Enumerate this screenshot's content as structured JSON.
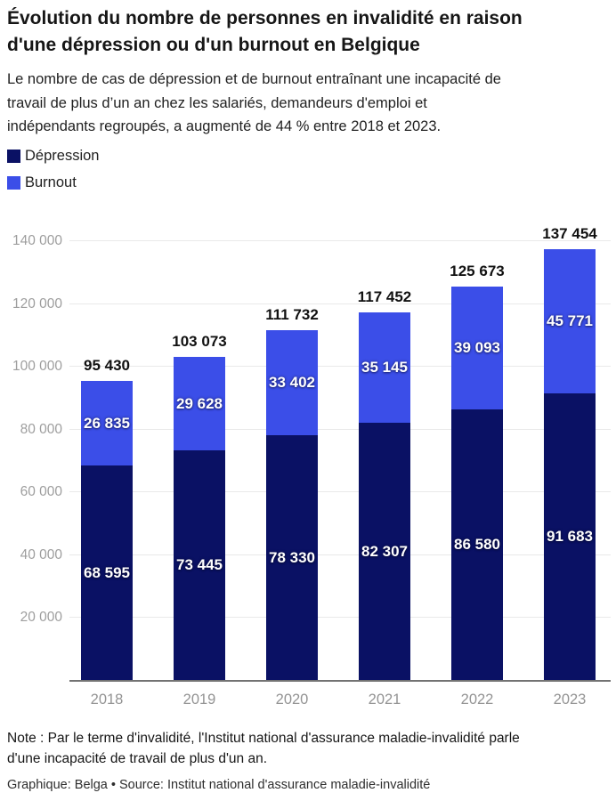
{
  "title": "Évolution du nombre de personnes en invalidité en raison\nd'une dépression ou d'un burnout en Belgique",
  "subtitle": "Le nombre de cas de dépression et de burnout entraînant une incapacité de\ntravail de plus d’un an chez les salariés, demandeurs d'emploi et\nindépendants regroupés, a augmenté de 44 % entre 2018 et 2023.",
  "legend": [
    {
      "label": "Dépression",
      "color": "#0a1164"
    },
    {
      "label": "Burnout",
      "color": "#3b4ee8"
    }
  ],
  "note": "Note : Par le terme d'invalidité, l'Institut national d'assurance maladie-invalidité parle\nd'une incapacité de travail de plus d'un an.",
  "credit": "Graphique: Belga • Source: Institut national d'assurance maladie-invalidité",
  "colors": {
    "depression": "#0a1164",
    "burnout": "#3b4ee8",
    "gridline": "#e9e9e9",
    "baseline": "#737373",
    "axis_text": "#9e9e9e",
    "total_text": "#111111",
    "inside_text": "#ffffff"
  },
  "chart_data": {
    "type": "bar",
    "stacked": true,
    "title": "Évolution du nombre de personnes en invalidité en raison d'une dépression ou d'un burnout en Belgique",
    "categories": [
      "2018",
      "2019",
      "2020",
      "2021",
      "2022",
      "2023"
    ],
    "series": [
      {
        "name": "Dépression",
        "color": "#0a1164",
        "values": [
          68595,
          73445,
          78330,
          82307,
          86580,
          91683
        ]
      },
      {
        "name": "Burnout",
        "color": "#3b4ee8",
        "values": [
          26835,
          29628,
          33402,
          35145,
          39093,
          45771
        ]
      }
    ],
    "totals": [
      95430,
      103073,
      111732,
      117452,
      125673,
      137454
    ],
    "xlabel": "",
    "ylabel": "",
    "ylim": [
      0,
      140000
    ],
    "ytick_step": 20000,
    "ytick_labels": [
      "20 000",
      "40 000",
      "60 000",
      "80 000",
      "100 000",
      "120 000",
      "140 000"
    ],
    "grid": true,
    "legend_position": "top-left",
    "number_format": "space-thousands"
  }
}
